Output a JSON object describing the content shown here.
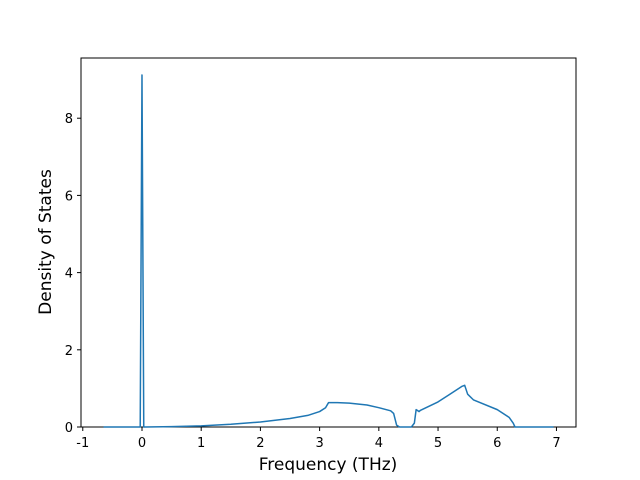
{
  "chart_data": {
    "type": "line",
    "x_label": "Frequency (THz)",
    "y_label": "Density of States",
    "xlim": [
      -1.03,
      7.33
    ],
    "ylim": [
      0,
      9.56
    ],
    "xticks": [
      -1,
      0,
      1,
      2,
      3,
      4,
      5,
      6,
      7
    ],
    "yticks": [
      0,
      2,
      4,
      6,
      8
    ],
    "series": [
      {
        "color": "#1f77b4",
        "x": [
          -0.65,
          -0.05,
          -0.03,
          0.0,
          0.03,
          0.05,
          0.5,
          1.0,
          1.5,
          2.0,
          2.5,
          2.8,
          3.0,
          3.1,
          3.15,
          3.3,
          3.5,
          3.8,
          4.0,
          4.2,
          4.25,
          4.3,
          4.35,
          4.55,
          4.6,
          4.63,
          4.68,
          4.7,
          5.0,
          5.2,
          5.4,
          5.45,
          5.5,
          5.6,
          6.0,
          6.2,
          6.27,
          6.3,
          6.95
        ],
        "values": [
          0,
          0,
          0,
          9.12,
          0,
          0,
          0.01,
          0.03,
          0.07,
          0.13,
          0.22,
          0.3,
          0.4,
          0.5,
          0.63,
          0.63,
          0.62,
          0.57,
          0.5,
          0.42,
          0.35,
          0.05,
          0,
          0,
          0.1,
          0.45,
          0.4,
          0.43,
          0.65,
          0.85,
          1.05,
          1.08,
          0.85,
          0.7,
          0.45,
          0.25,
          0.1,
          0,
          0
        ]
      }
    ]
  }
}
